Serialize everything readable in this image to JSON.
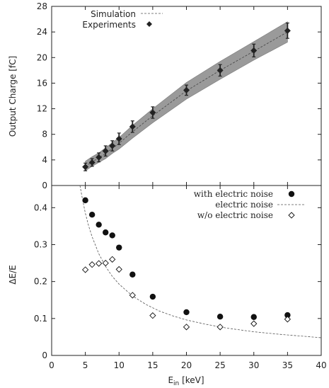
{
  "chart_data": [
    {
      "type": "line",
      "ylabel": "Output Charge [fC]",
      "xlim": [
        0,
        40
      ],
      "ylim": [
        0,
        28
      ],
      "yticks": [
        0,
        4,
        8,
        12,
        16,
        20,
        24,
        28
      ],
      "legend_position": "top-left",
      "grid": false,
      "series": [
        {
          "name": "Simulation",
          "style": "dashed-line-with-band",
          "x": [
            5,
            6,
            7,
            8,
            9,
            10,
            12,
            15,
            20,
            25,
            30,
            35
          ],
          "y": [
            3.0,
            3.7,
            4.3,
            5.0,
            5.8,
            6.6,
            8.4,
            10.9,
            14.8,
            18.0,
            21.0,
            24.0
          ],
          "band_lower": [
            2.3,
            3.0,
            3.6,
            4.2,
            5.0,
            5.7,
            7.4,
            9.8,
            13.5,
            16.6,
            19.6,
            22.4
          ],
          "band_upper": [
            3.8,
            4.5,
            5.1,
            5.9,
            6.7,
            7.5,
            9.4,
            12.0,
            16.1,
            19.4,
            22.5,
            25.6
          ]
        },
        {
          "name": "Experiments",
          "style": "diamond-markers-with-errorbars",
          "x": [
            5,
            6,
            7,
            8,
            9,
            10,
            12,
            15,
            20,
            25,
            30,
            35
          ],
          "y": [
            2.9,
            3.6,
            4.4,
            5.4,
            6.2,
            7.3,
            9.2,
            11.4,
            14.9,
            18.0,
            21.1,
            24.2
          ],
          "err": [
            0.6,
            0.6,
            0.7,
            0.8,
            0.8,
            0.9,
            0.9,
            0.9,
            0.8,
            0.9,
            1.0,
            1.2
          ]
        }
      ],
      "colors": {
        "marker": "#222222",
        "band": "#9a9a9a",
        "line": "#444444"
      }
    },
    {
      "type": "scatter",
      "xlabel_main": "E",
      "xlabel_sub": "in",
      "xlabel_unit": " [keV]",
      "ylabel": "ΔE/E",
      "xlim": [
        0,
        40
      ],
      "ylim": [
        0,
        0.46
      ],
      "xticks": [
        0,
        5,
        10,
        15,
        20,
        25,
        30,
        35,
        40
      ],
      "yticks": [
        0,
        0.1,
        0.2,
        0.3,
        0.4
      ],
      "legend_position": "top-right",
      "grid": false,
      "series": [
        {
          "name": "with electric noise",
          "style": "filled-circle",
          "x": [
            5,
            6,
            7,
            8,
            9,
            10,
            12,
            15,
            20,
            25,
            30,
            35
          ],
          "y": [
            0.42,
            0.381,
            0.354,
            0.333,
            0.325,
            0.292,
            0.219,
            0.159,
            0.117,
            0.105,
            0.104,
            0.109
          ]
        },
        {
          "name": "electric noise",
          "style": "dashed-curve",
          "function_x": [
            4.2,
            4.5,
            5,
            5.5,
            6,
            7,
            8,
            9,
            10,
            12,
            14,
            16,
            18,
            20,
            23,
            26,
            30,
            34,
            38,
            40
          ],
          "function_y": [
            0.46,
            0.43,
            0.385,
            0.35,
            0.321,
            0.275,
            0.241,
            0.214,
            0.193,
            0.161,
            0.138,
            0.12,
            0.107,
            0.096,
            0.084,
            0.074,
            0.064,
            0.057,
            0.051,
            0.048
          ]
        },
        {
          "name": "w/o electric noise",
          "style": "open-diamond",
          "x": [
            5,
            6,
            7,
            8,
            9,
            10,
            12,
            15,
            20,
            25,
            30,
            35
          ],
          "y": [
            0.232,
            0.246,
            0.249,
            0.25,
            0.26,
            0.233,
            0.163,
            0.108,
            0.077,
            0.077,
            0.086,
            0.098
          ]
        }
      ],
      "colors": {
        "marker": "#111111",
        "curve": "#555555"
      }
    }
  ]
}
